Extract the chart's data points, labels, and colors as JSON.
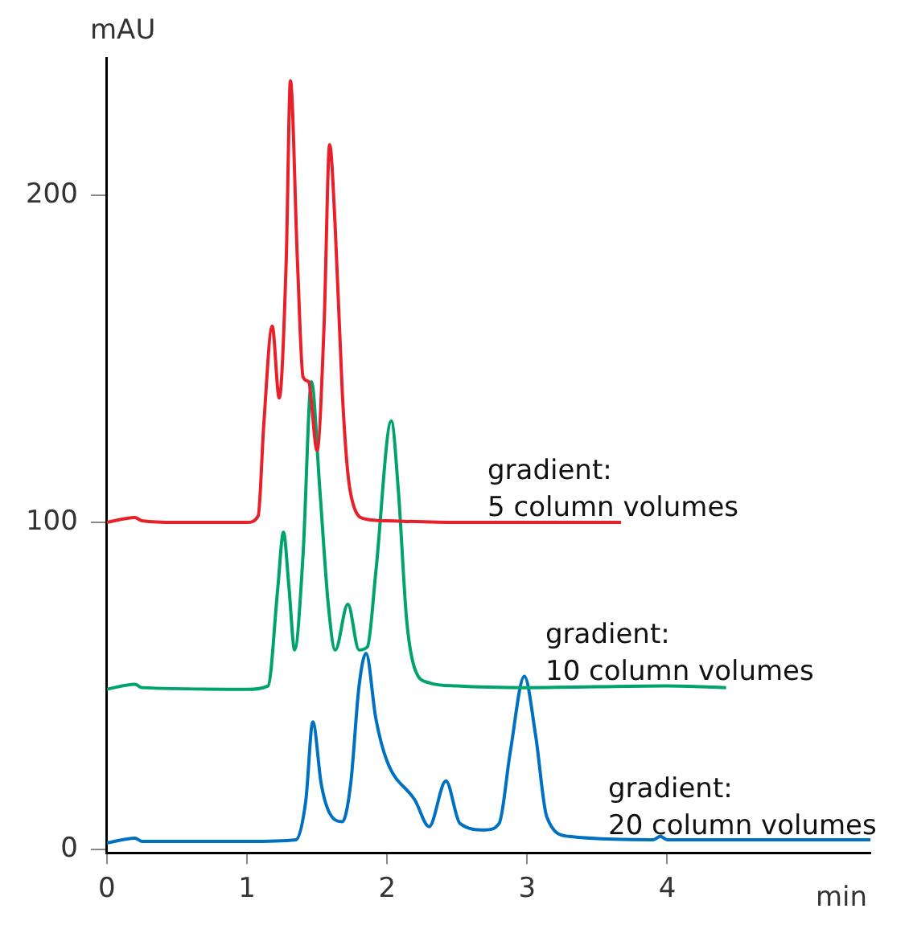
{
  "chart_data": {
    "type": "line",
    "xlabel": "min",
    "ylabel": "mAU",
    "xlim": [
      0,
      5.45
    ],
    "ylim": [
      -1,
      242
    ],
    "xticks": [
      0,
      1,
      2,
      3,
      4
    ],
    "yticks": [
      0,
      100,
      200
    ],
    "grid": false,
    "legend": false,
    "marker": "none",
    "line_style": "solid",
    "series": [
      {
        "name": "gradient: 5 column volumes",
        "color": "#e8202a",
        "x": [
          0,
          0.2,
          0.25,
          0.5,
          1.0,
          1.08,
          1.12,
          1.18,
          1.23,
          1.28,
          1.31,
          1.36,
          1.4,
          1.44,
          1.5,
          1.55,
          1.59,
          1.63,
          1.68,
          1.72,
          1.77,
          1.85,
          2.0,
          2.5,
          3.67
        ],
        "values": [
          100,
          101.5,
          100.5,
          100,
          100,
          102,
          130,
          160,
          138,
          180,
          235,
          180,
          144.5,
          143,
          122,
          160,
          215.5,
          190,
          140,
          115,
          104,
          101,
          100.5,
          100,
          100
        ]
      },
      {
        "name": "gradient: 10 column volumes",
        "color": "#00a36c",
        "x": [
          0,
          0.2,
          0.25,
          1.0,
          1.15,
          1.22,
          1.26,
          1.3,
          1.34,
          1.4,
          1.46,
          1.52,
          1.58,
          1.63,
          1.72,
          1.8,
          1.86,
          1.92,
          2.03,
          2.08,
          2.14,
          2.2,
          2.3,
          2.5,
          3.0,
          4.0,
          4.42
        ],
        "values": [
          49,
          50.5,
          49.5,
          49,
          50,
          80,
          97,
          80,
          61,
          90,
          143,
          110,
          75,
          61,
          75,
          61,
          62,
          85,
          131,
          110,
          70,
          55,
          51,
          50,
          49.5,
          50,
          49.5
        ]
      },
      {
        "name": "gradient: 20 column volumes",
        "color": "#0070c0",
        "x": [
          0,
          0.2,
          0.25,
          1.0,
          1.35,
          1.42,
          1.47,
          1.53,
          1.58,
          1.68,
          1.74,
          1.8,
          1.85,
          1.92,
          2.0,
          2.2,
          2.3,
          2.42,
          2.52,
          2.7,
          2.8,
          2.88,
          2.98,
          3.06,
          3.14,
          3.3,
          3.9,
          3.95,
          4.0,
          5.45
        ],
        "values": [
          2,
          3.5,
          2.5,
          2.5,
          3,
          15,
          39,
          20,
          12,
          8.5,
          20,
          50,
          60,
          40,
          27,
          15,
          7,
          21,
          8,
          6,
          8,
          30,
          53,
          35,
          10,
          4,
          3,
          4,
          3,
          3
        ]
      }
    ]
  }
}
